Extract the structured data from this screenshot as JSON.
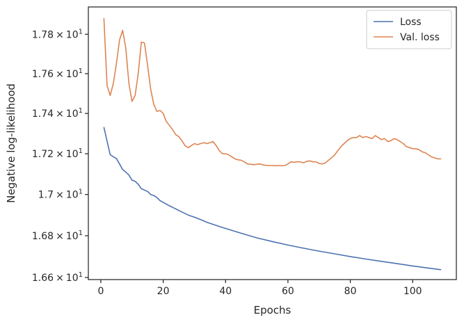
{
  "chart_data": {
    "type": "line",
    "xlabel": "Epochs",
    "ylabel": "Negative log-likelihood",
    "xlim": [
      -4,
      114
    ],
    "ylim": [
      16.59,
      17.94
    ],
    "y_scale": "log",
    "grid": false,
    "legend_position": "top-right",
    "x_ticks": [
      0,
      20,
      40,
      60,
      80,
      100
    ],
    "x_tick_labels": [
      "0",
      "20",
      "40",
      "60",
      "80",
      "100"
    ],
    "y_ticks": [
      {
        "value": 17.8,
        "mantissa": "1.78",
        "times": "×",
        "base": "10",
        "exponent": "1"
      },
      {
        "value": 17.6,
        "mantissa": "1.76",
        "times": "×",
        "base": "10",
        "exponent": "1"
      },
      {
        "value": 17.4,
        "mantissa": "1.74",
        "times": "×",
        "base": "10",
        "exponent": "1"
      },
      {
        "value": 17.2,
        "mantissa": "1.72",
        "times": "×",
        "base": "10",
        "exponent": "1"
      },
      {
        "value": 17.0,
        "mantissa": "1.7",
        "times": "×",
        "base": "10",
        "exponent": "1"
      },
      {
        "value": 16.8,
        "mantissa": "1.68",
        "times": "×",
        "base": "10",
        "exponent": "1"
      },
      {
        "value": 16.6,
        "mantissa": "1.66",
        "times": "×",
        "base": "10",
        "exponent": "1"
      }
    ],
    "series": [
      {
        "name": "Loss",
        "color": "#4c72b0",
        "x": [
          1,
          3,
          4,
          5,
          6,
          7,
          8,
          9,
          10,
          11,
          12,
          13,
          15,
          16,
          17,
          18,
          19,
          20,
          22,
          24,
          26,
          28,
          30,
          32,
          34,
          36,
          38,
          40,
          45,
          50,
          55,
          60,
          65,
          70,
          75,
          80,
          85,
          90,
          95,
          100,
          105,
          109
        ],
        "y": [
          17.33,
          17.195,
          17.185,
          17.177,
          17.15,
          17.122,
          17.11,
          17.095,
          17.07,
          17.065,
          17.05,
          17.028,
          17.015,
          17.0,
          16.995,
          16.985,
          16.97,
          16.962,
          16.945,
          16.93,
          16.915,
          16.9,
          16.89,
          16.878,
          16.865,
          16.855,
          16.845,
          16.835,
          16.812,
          16.79,
          16.772,
          16.755,
          16.74,
          16.726,
          16.713,
          16.7,
          16.688,
          16.677,
          16.666,
          16.655,
          16.645,
          16.637
        ]
      },
      {
        "name": "Val. loss",
        "color": "#dd8452",
        "x": [
          1,
          2,
          3,
          4,
          5,
          6,
          7,
          8,
          9,
          10,
          11,
          12,
          13,
          14,
          15,
          16,
          17,
          18,
          19,
          20,
          21,
          22,
          23,
          24,
          25,
          26,
          27,
          28,
          29,
          30,
          31,
          32,
          33,
          34,
          35,
          36,
          37,
          38,
          39,
          40,
          41,
          42,
          43,
          44,
          45,
          46,
          47,
          48,
          49,
          50,
          51,
          52,
          53,
          54,
          55,
          56,
          57,
          58,
          59,
          60,
          61,
          62,
          63,
          64,
          65,
          66,
          67,
          68,
          69,
          70,
          71,
          72,
          73,
          74,
          75,
          76,
          77,
          78,
          79,
          80,
          81,
          82,
          83,
          84,
          85,
          86,
          87,
          88,
          89,
          90,
          91,
          92,
          93,
          94,
          95,
          96,
          97,
          98,
          99,
          100,
          101,
          102,
          103,
          104,
          105,
          106,
          107,
          108,
          109
        ],
        "y": [
          17.88,
          17.54,
          17.49,
          17.55,
          17.65,
          17.77,
          17.82,
          17.73,
          17.55,
          17.46,
          17.49,
          17.6,
          17.76,
          17.755,
          17.64,
          17.52,
          17.445,
          17.41,
          17.415,
          17.4,
          17.36,
          17.34,
          17.32,
          17.295,
          17.285,
          17.265,
          17.24,
          17.23,
          17.24,
          17.25,
          17.245,
          17.25,
          17.255,
          17.25,
          17.255,
          17.26,
          17.24,
          17.215,
          17.2,
          17.2,
          17.195,
          17.185,
          17.175,
          17.17,
          17.168,
          17.16,
          17.15,
          17.148,
          17.146,
          17.148,
          17.15,
          17.145,
          17.143,
          17.142,
          17.142,
          17.141,
          17.142,
          17.141,
          17.142,
          17.15,
          17.16,
          17.158,
          17.16,
          17.16,
          17.155,
          17.162,
          17.165,
          17.16,
          17.16,
          17.152,
          17.15,
          17.155,
          17.168,
          17.18,
          17.195,
          17.215,
          17.235,
          17.25,
          17.265,
          17.275,
          17.28,
          17.28,
          17.29,
          17.28,
          17.285,
          17.28,
          17.275,
          17.29,
          17.28,
          17.27,
          17.275,
          17.26,
          17.265,
          17.275,
          17.27,
          17.26,
          17.25,
          17.235,
          17.23,
          17.225,
          17.225,
          17.22,
          17.21,
          17.205,
          17.195,
          17.185,
          17.18,
          17.175,
          17.175
        ]
      }
    ]
  }
}
